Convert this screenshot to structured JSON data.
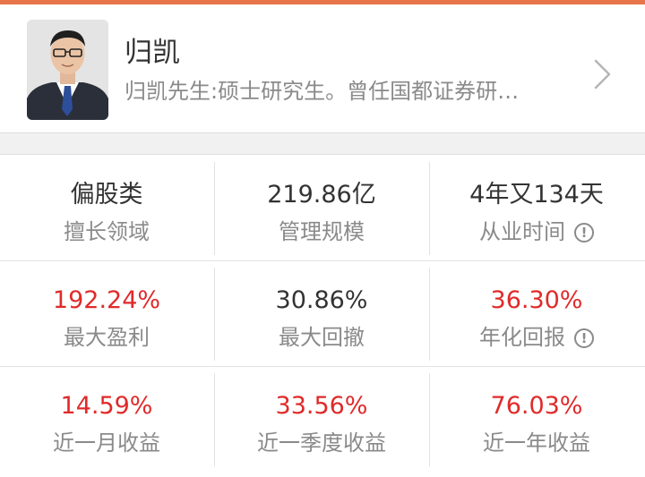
{
  "manager": {
    "name": "归凯",
    "description": "归凯先生:硕士研究生。曾任国都证券研…"
  },
  "stats": [
    {
      "value": "偏股类",
      "label": "擅长领域",
      "value_color": "normal",
      "info": false
    },
    {
      "value": "219.86亿",
      "label": "管理规模",
      "value_color": "normal",
      "info": false
    },
    {
      "value": "4年又134天",
      "label": "从业时间",
      "value_color": "normal",
      "info": true
    },
    {
      "value": "192.24%",
      "label": "最大盈利",
      "value_color": "red",
      "info": false
    },
    {
      "value": "30.86%",
      "label": "最大回撤",
      "value_color": "normal",
      "info": false
    },
    {
      "value": "36.30%",
      "label": "年化回报",
      "value_color": "red",
      "info": true
    },
    {
      "value": "14.59%",
      "label": "近一月收益",
      "value_color": "red",
      "info": false
    },
    {
      "value": "33.56%",
      "label": "近一季度收益",
      "value_color": "red",
      "info": false
    },
    {
      "value": "76.03%",
      "label": "近一年收益",
      "value_color": "red",
      "info": false
    }
  ],
  "icons": {
    "info": "!",
    "chevron": "chevron-right-icon"
  },
  "colors": {
    "positive": "#e02a2a",
    "accent_line": "#e8754a",
    "text_primary": "#333333",
    "text_secondary": "#8a8a8a"
  }
}
